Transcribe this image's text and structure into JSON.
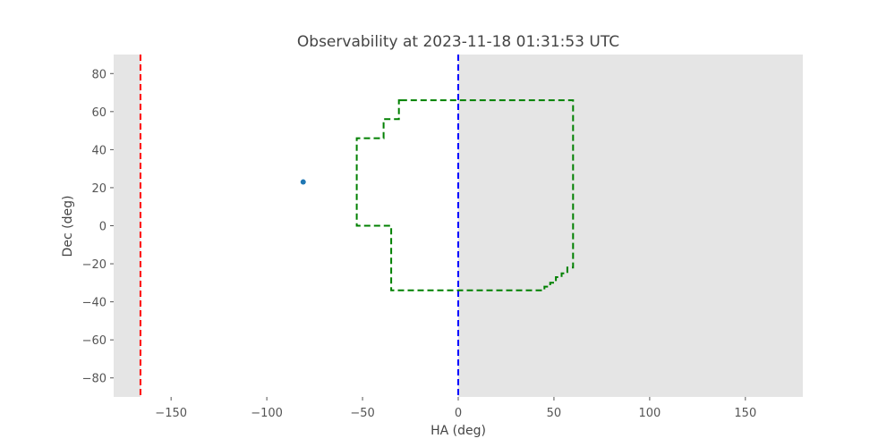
{
  "chart_data": {
    "type": "line",
    "title": "Observability at 2023-11-18 01:31:53 UTC",
    "xlabel": "HA (deg)",
    "ylabel": "Dec (deg)",
    "xlim": [
      -180,
      180
    ],
    "ylim": [
      -90,
      90
    ],
    "x_ticks": [
      -150,
      -100,
      -50,
      0,
      50,
      100,
      150
    ],
    "x_tick_labels": [
      "−150",
      "−100",
      "−50",
      "0",
      "50",
      "100",
      "150"
    ],
    "y_ticks": [
      80,
      60,
      40,
      20,
      0,
      -20,
      -40,
      -60,
      -80
    ],
    "y_tick_labels": [
      "80",
      "60",
      "40",
      "20",
      "0",
      "−20",
      "−40",
      "−60",
      "−80"
    ],
    "grid": false,
    "shaded_regions": [
      {
        "x": [
          -180,
          -166
        ],
        "color": "#e5e5e5"
      },
      {
        "x": [
          0,
          180
        ],
        "color": "#e5e5e5"
      }
    ],
    "vertical_lines": [
      {
        "x": -166,
        "color": "#ff0000",
        "style": "dashed"
      },
      {
        "x": 0,
        "color": "#0000ff",
        "style": "dashed"
      }
    ],
    "series": [
      {
        "color": "#008000",
        "style": "dashed",
        "x": [
          -30,
          60,
          60,
          57,
          57,
          54,
          54,
          51,
          51,
          48,
          48,
          45,
          45,
          43,
          -35,
          -35,
          -53,
          -53,
          -39,
          -39,
          -31,
          -31,
          -30
        ],
        "y": [
          66,
          66,
          -22,
          -22,
          -25,
          -25,
          -27,
          -27,
          -30,
          -30,
          -32,
          -32,
          -34,
          -34,
          -34,
          0,
          0,
          46,
          46,
          56,
          56,
          66,
          66
        ]
      }
    ],
    "points": [
      {
        "x": -81,
        "y": 23,
        "color": "#1f77b4"
      }
    ]
  }
}
